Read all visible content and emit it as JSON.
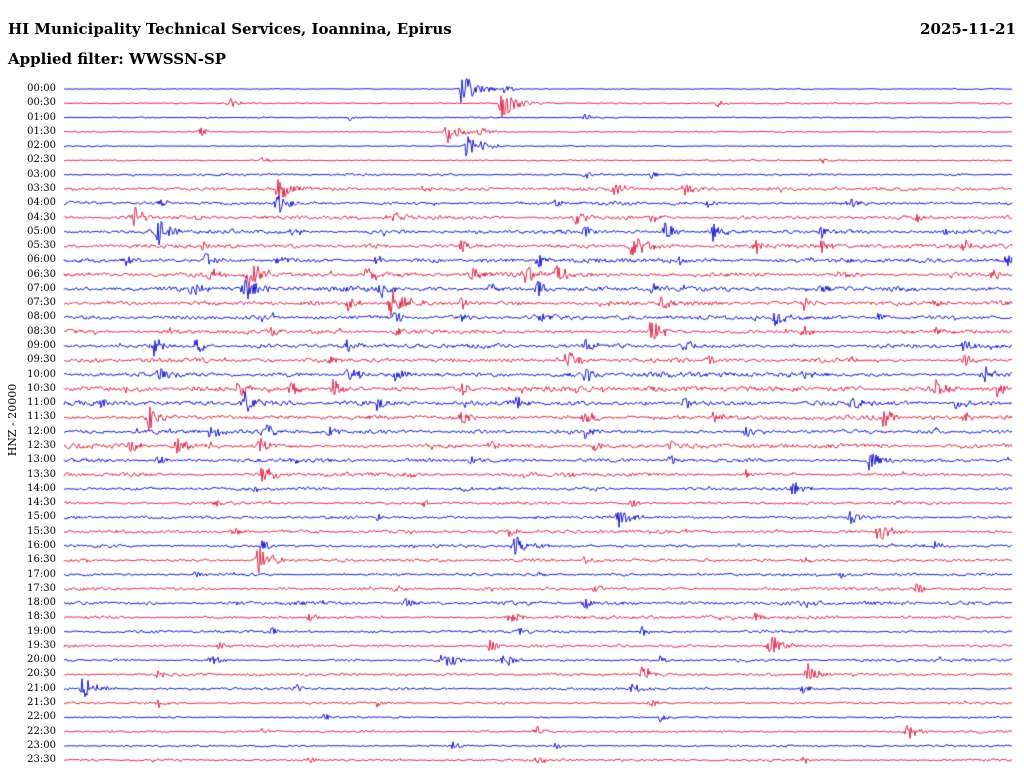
{
  "header": {
    "title": "HI Municipality Technical Services, Ioannina, Epirus",
    "date": "2025-11-21",
    "filter_label": "Applied filter: WWSSN-SP"
  },
  "y_axis_label": "HNZ - 20000",
  "chart_data": {
    "type": "line",
    "subtype": "helicorder-seismogram",
    "station_channel": "HNZ",
    "scale": 20000,
    "row_duration_min": 30,
    "time_range": [
      "00:00",
      "23:30"
    ],
    "colors": {
      "blue": "#0000cd",
      "red": "#dc143c"
    },
    "rows": [
      {
        "time": "00:00",
        "color": "blue",
        "amp": 0.25,
        "events": [
          [
            0.42,
            13
          ],
          [
            0.465,
            4
          ]
        ]
      },
      {
        "time": "00:30",
        "color": "red",
        "amp": 0.3,
        "events": [
          [
            0.175,
            4
          ],
          [
            0.462,
            12
          ],
          [
            0.69,
            3
          ]
        ]
      },
      {
        "time": "01:00",
        "color": "blue",
        "amp": 0.3,
        "events": [
          [
            0.3,
            3
          ],
          [
            0.55,
            3
          ]
        ]
      },
      {
        "time": "01:30",
        "color": "red",
        "amp": 0.3,
        "events": [
          [
            0.145,
            4
          ],
          [
            0.405,
            9
          ],
          [
            0.44,
            5
          ]
        ]
      },
      {
        "time": "02:00",
        "color": "blue",
        "amp": 0.25,
        "events": [
          [
            0.425,
            11
          ]
        ]
      },
      {
        "time": "02:30",
        "color": "red",
        "amp": 0.3,
        "events": [
          [
            0.21,
            3
          ],
          [
            0.8,
            3
          ]
        ]
      },
      {
        "time": "03:00",
        "color": "blue",
        "amp": 0.5,
        "events": [
          [
            0.55,
            4
          ],
          [
            0.62,
            3
          ]
        ]
      },
      {
        "time": "03:30",
        "color": "red",
        "amp": 0.75,
        "events": [
          [
            0.225,
            10
          ],
          [
            0.38,
            4
          ],
          [
            0.58,
            5
          ],
          [
            0.655,
            6
          ]
        ]
      },
      {
        "time": "04:00",
        "color": "blue",
        "amp": 0.8,
        "events": [
          [
            0.1,
            4
          ],
          [
            0.225,
            9
          ],
          [
            0.52,
            4
          ],
          [
            0.68,
            4
          ],
          [
            0.83,
            4
          ]
        ]
      },
      {
        "time": "04:30",
        "color": "red",
        "amp": 0.8,
        "events": [
          [
            0.075,
            8
          ],
          [
            0.35,
            4
          ],
          [
            0.54,
            6
          ],
          [
            0.62,
            5
          ],
          [
            0.9,
            4
          ]
        ]
      },
      {
        "time": "05:00",
        "color": "blue",
        "amp": 0.95,
        "events": [
          [
            0.1,
            9
          ],
          [
            0.24,
            4
          ],
          [
            0.55,
            6
          ],
          [
            0.635,
            7
          ],
          [
            0.685,
            7
          ],
          [
            0.8,
            5
          ],
          [
            0.93,
            4
          ]
        ]
      },
      {
        "time": "05:30",
        "color": "red",
        "amp": 0.9,
        "events": [
          [
            0.145,
            5
          ],
          [
            0.42,
            5
          ],
          [
            0.6,
            9
          ],
          [
            0.73,
            6
          ],
          [
            0.8,
            5
          ],
          [
            0.95,
            5
          ]
        ]
      },
      {
        "time": "06:00",
        "color": "blue",
        "amp": 1.0,
        "events": [
          [
            0.065,
            5
          ],
          [
            0.15,
            6
          ],
          [
            0.225,
            5
          ],
          [
            0.33,
            4
          ],
          [
            0.5,
            6
          ],
          [
            0.65,
            5
          ],
          [
            0.995,
            6
          ]
        ]
      },
      {
        "time": "06:30",
        "color": "red",
        "amp": 1.0,
        "events": [
          [
            0.155,
            6
          ],
          [
            0.195,
            11
          ],
          [
            0.32,
            6
          ],
          [
            0.43,
            7
          ],
          [
            0.485,
            9
          ],
          [
            0.52,
            7
          ],
          [
            0.98,
            5
          ]
        ]
      },
      {
        "time": "07:00",
        "color": "blue",
        "amp": 1.1,
        "events": [
          [
            0.135,
            7
          ],
          [
            0.19,
            10
          ],
          [
            0.335,
            7
          ],
          [
            0.45,
            6
          ],
          [
            0.5,
            6
          ],
          [
            0.62,
            5
          ],
          [
            0.8,
            5
          ]
        ]
      },
      {
        "time": "07:30",
        "color": "red",
        "amp": 1.05,
        "events": [
          [
            0.3,
            6
          ],
          [
            0.345,
            12
          ],
          [
            0.42,
            6
          ],
          [
            0.63,
            6
          ],
          [
            0.78,
            5
          ],
          [
            0.92,
            4
          ]
        ]
      },
      {
        "time": "08:00",
        "color": "blue",
        "amp": 0.95,
        "events": [
          [
            0.35,
            5
          ],
          [
            0.42,
            4
          ],
          [
            0.5,
            5
          ],
          [
            0.75,
            8
          ],
          [
            0.86,
            4
          ]
        ]
      },
      {
        "time": "08:30",
        "color": "red",
        "amp": 0.95,
        "events": [
          [
            0.22,
            4
          ],
          [
            0.35,
            5
          ],
          [
            0.62,
            9
          ],
          [
            0.78,
            5
          ],
          [
            0.92,
            4
          ]
        ]
      },
      {
        "time": "09:00",
        "color": "blue",
        "amp": 1.0,
        "events": [
          [
            0.095,
            8
          ],
          [
            0.14,
            6
          ],
          [
            0.3,
            5
          ],
          [
            0.55,
            5
          ],
          [
            0.655,
            5
          ],
          [
            0.95,
            6
          ]
        ]
      },
      {
        "time": "09:30",
        "color": "red",
        "amp": 0.95,
        "events": [
          [
            0.28,
            4
          ],
          [
            0.53,
            8
          ],
          [
            0.68,
            5
          ],
          [
            0.83,
            4
          ],
          [
            0.95,
            5
          ]
        ]
      },
      {
        "time": "10:00",
        "color": "blue",
        "amp": 1.1,
        "events": [
          [
            0.1,
            5
          ],
          [
            0.3,
            8
          ],
          [
            0.35,
            6
          ],
          [
            0.55,
            6
          ],
          [
            0.78,
            5
          ],
          [
            0.97,
            7
          ]
        ]
      },
      {
        "time": "10:30",
        "color": "red",
        "amp": 1.1,
        "events": [
          [
            0.185,
            6
          ],
          [
            0.24,
            7
          ],
          [
            0.285,
            8
          ],
          [
            0.42,
            5
          ],
          [
            0.92,
            8
          ],
          [
            0.985,
            6
          ]
        ]
      },
      {
        "time": "11:00",
        "color": "blue",
        "amp": 1.0,
        "events": [
          [
            0.04,
            5
          ],
          [
            0.19,
            9
          ],
          [
            0.33,
            5
          ],
          [
            0.475,
            6
          ],
          [
            0.655,
            5
          ],
          [
            0.83,
            6
          ],
          [
            0.94,
            5
          ]
        ]
      },
      {
        "time": "11:30",
        "color": "red",
        "amp": 1.0,
        "events": [
          [
            0.09,
            10
          ],
          [
            0.42,
            5
          ],
          [
            0.55,
            7
          ],
          [
            0.685,
            6
          ],
          [
            0.865,
            7
          ],
          [
            0.95,
            5
          ]
        ]
      },
      {
        "time": "12:00",
        "color": "blue",
        "amp": 0.9,
        "events": [
          [
            0.155,
            6
          ],
          [
            0.215,
            6
          ],
          [
            0.28,
            4
          ],
          [
            0.55,
            5
          ],
          [
            0.72,
            4
          ],
          [
            0.92,
            4
          ]
        ]
      },
      {
        "time": "12:30",
        "color": "red",
        "amp": 0.95,
        "events": [
          [
            0.07,
            6
          ],
          [
            0.12,
            8
          ],
          [
            0.205,
            6
          ],
          [
            0.45,
            5
          ],
          [
            0.56,
            4
          ],
          [
            0.64,
            4
          ]
        ]
      },
      {
        "time": "13:00",
        "color": "blue",
        "amp": 0.85,
        "events": [
          [
            0.1,
            4
          ],
          [
            0.24,
            4
          ],
          [
            0.43,
            4
          ],
          [
            0.64,
            4
          ],
          [
            0.85,
            9
          ]
        ]
      },
      {
        "time": "13:30",
        "color": "red",
        "amp": 0.8,
        "events": [
          [
            0.21,
            8
          ],
          [
            0.36,
            4
          ],
          [
            0.53,
            4
          ],
          [
            0.72,
            3
          ]
        ]
      },
      {
        "time": "14:00",
        "color": "blue",
        "amp": 0.7,
        "events": [
          [
            0.2,
            3
          ],
          [
            0.42,
            3
          ],
          [
            0.77,
            7
          ]
        ]
      },
      {
        "time": "14:30",
        "color": "red",
        "amp": 0.65,
        "events": [
          [
            0.16,
            3
          ],
          [
            0.38,
            3
          ],
          [
            0.6,
            3
          ],
          [
            0.88,
            3
          ]
        ]
      },
      {
        "time": "15:00",
        "color": "blue",
        "amp": 0.7,
        "events": [
          [
            0.33,
            3
          ],
          [
            0.585,
            8
          ],
          [
            0.83,
            6
          ]
        ]
      },
      {
        "time": "15:30",
        "color": "red",
        "amp": 0.7,
        "events": [
          [
            0.18,
            4
          ],
          [
            0.47,
            4
          ],
          [
            0.86,
            9
          ]
        ]
      },
      {
        "time": "16:00",
        "color": "blue",
        "amp": 0.65,
        "events": [
          [
            0.21,
            5
          ],
          [
            0.475,
            9
          ],
          [
            0.92,
            4
          ]
        ]
      },
      {
        "time": "16:30",
        "color": "red",
        "amp": 0.65,
        "events": [
          [
            0.205,
            11
          ],
          [
            0.55,
            3
          ],
          [
            0.78,
            3
          ]
        ]
      },
      {
        "time": "17:00",
        "color": "blue",
        "amp": 0.6,
        "events": [
          [
            0.14,
            3
          ],
          [
            0.5,
            3
          ],
          [
            0.82,
            3
          ]
        ]
      },
      {
        "time": "17:30",
        "color": "red",
        "amp": 0.65,
        "events": [
          [
            0.35,
            4
          ],
          [
            0.56,
            5
          ],
          [
            0.9,
            5
          ]
        ]
      },
      {
        "time": "18:00",
        "color": "blue",
        "amp": 0.8,
        "events": [
          [
            0.24,
            4
          ],
          [
            0.36,
            5
          ],
          [
            0.55,
            5
          ],
          [
            0.78,
            4
          ]
        ]
      },
      {
        "time": "18:30",
        "color": "red",
        "amp": 0.7,
        "events": [
          [
            0.26,
            4
          ],
          [
            0.47,
            6
          ],
          [
            0.73,
            4
          ]
        ]
      },
      {
        "time": "19:00",
        "color": "blue",
        "amp": 0.6,
        "events": [
          [
            0.22,
            3
          ],
          [
            0.48,
            4
          ],
          [
            0.61,
            4
          ]
        ]
      },
      {
        "time": "19:30",
        "color": "red",
        "amp": 0.65,
        "events": [
          [
            0.165,
            4
          ],
          [
            0.45,
            5
          ],
          [
            0.745,
            9
          ]
        ]
      },
      {
        "time": "20:00",
        "color": "blue",
        "amp": 0.6,
        "events": [
          [
            0.155,
            5
          ],
          [
            0.4,
            8
          ],
          [
            0.465,
            6
          ],
          [
            0.63,
            4
          ]
        ]
      },
      {
        "time": "20:30",
        "color": "red",
        "amp": 0.6,
        "events": [
          [
            0.1,
            4
          ],
          [
            0.61,
            7
          ],
          [
            0.785,
            8
          ]
        ]
      },
      {
        "time": "21:00",
        "color": "blue",
        "amp": 0.55,
        "events": [
          [
            0.02,
            10
          ],
          [
            0.245,
            4
          ],
          [
            0.6,
            5
          ],
          [
            0.78,
            4
          ]
        ]
      },
      {
        "time": "21:30",
        "color": "red",
        "amp": 0.45,
        "events": [
          [
            0.1,
            4
          ],
          [
            0.33,
            3
          ],
          [
            0.62,
            4
          ]
        ]
      },
      {
        "time": "22:00",
        "color": "blue",
        "amp": 0.35,
        "events": [
          [
            0.275,
            3
          ],
          [
            0.63,
            4
          ]
        ]
      },
      {
        "time": "22:30",
        "color": "red",
        "amp": 0.5,
        "events": [
          [
            0.21,
            3
          ],
          [
            0.5,
            4
          ],
          [
            0.89,
            7
          ]
        ]
      },
      {
        "time": "23:00",
        "color": "blue",
        "amp": 0.4,
        "events": [
          [
            0.41,
            4
          ],
          [
            0.52,
            3
          ]
        ]
      },
      {
        "time": "23:30",
        "color": "red",
        "amp": 0.45,
        "events": [
          [
            0.26,
            3
          ],
          [
            0.5,
            4
          ],
          [
            0.78,
            3
          ]
        ]
      }
    ]
  }
}
